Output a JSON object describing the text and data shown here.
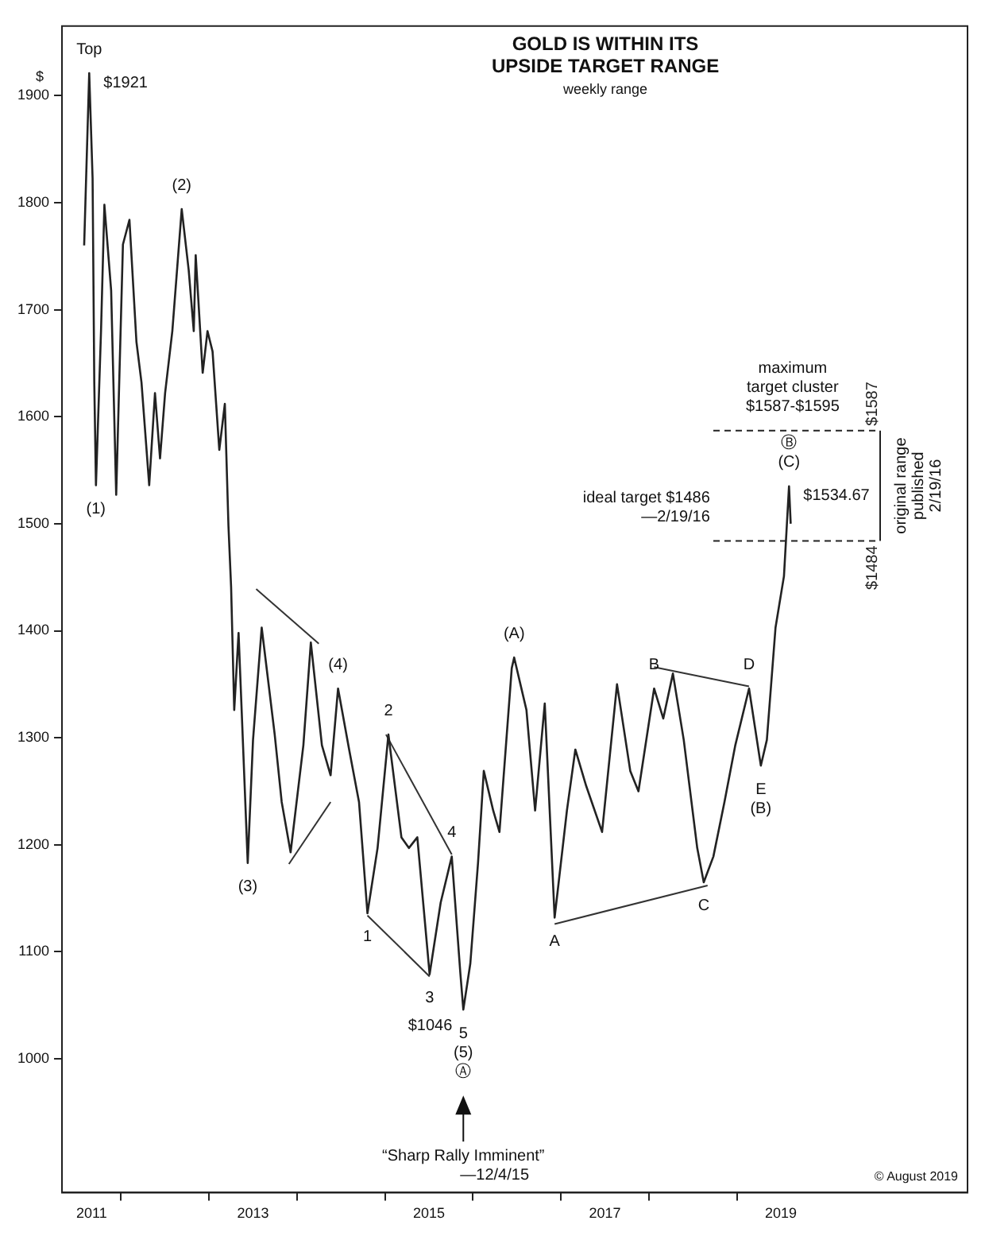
{
  "chart_data": {
    "type": "line",
    "title": "GOLD IS WITHIN ITS\nUPSIDE TARGET RANGE",
    "subtitle": "weekly range",
    "ylabel": "$",
    "x": [
      "2011-08-01",
      "2011-08-22",
      "2011-09-05",
      "2011-09-12",
      "2011-09-19",
      "2011-10-10",
      "2011-10-24",
      "2011-11-21",
      "2011-12-12",
      "2012-01-09",
      "2012-02-05",
      "2012-03-05",
      "2012-03-26",
      "2012-04-27",
      "2012-05-21",
      "2012-06-11",
      "2012-07-02",
      "2012-08-01",
      "2012-09-09",
      "2012-10-08",
      "2012-10-29",
      "2012-11-06",
      "2012-12-05",
      "2012-12-25",
      "2013-01-15",
      "2013-02-12",
      "2013-03-07",
      "2013-03-22",
      "2013-04-02",
      "2013-04-15",
      "2013-05-03",
      "2013-06-10",
      "2013-07-02",
      "2013-08-07",
      "2013-09-30",
      "2013-10-29",
      "2013-12-05",
      "2014-01-27",
      "2014-02-27",
      "2014-04-14",
      "2014-05-20",
      "2014-06-20",
      "2014-08-05",
      "2014-09-15",
      "2014-10-20",
      "2014-12-01",
      "2015-01-15",
      "2015-03-10",
      "2015-04-10",
      "2015-05-15",
      "2015-07-05",
      "2015-08-20",
      "2015-10-05",
      "2015-11-10",
      "2015-11-22",
      "2015-12-21",
      "2016-01-22",
      "2016-02-15",
      "2016-03-25",
      "2016-04-20",
      "2016-06-10",
      "2016-06-20",
      "2016-08-10",
      "2016-09-15",
      "2016-10-25",
      "2016-12-05",
      "2017-01-25",
      "2017-03-01",
      "2017-04-15",
      "2017-06-20",
      "2017-08-21",
      "2017-10-15",
      "2017-11-18",
      "2018-01-22",
      "2018-03-01",
      "2018-04-10",
      "2018-05-25",
      "2018-07-20",
      "2018-08-16",
      "2018-09-25",
      "2018-11-10",
      "2018-12-25",
      "2019-02-20",
      "2019-04-10",
      "2019-05-05",
      "2019-06-10",
      "2019-07-15",
      "2019-08-05",
      "2019-08-12"
    ],
    "series": [
      {
        "color": "#222222",
        "values": [
          1760,
          1921,
          1823,
          1632,
          1536,
          1680,
          1798,
          1718,
          1527,
          1761,
          1784,
          1670,
          1632,
          1536,
          1622,
          1561,
          1622,
          1680,
          1794,
          1737,
          1680,
          1751,
          1641,
          1680,
          1661,
          1569,
          1612,
          1498,
          1441,
          1326,
          1398,
          1183,
          1298,
          1403,
          1303,
          1240,
          1193,
          1293,
          1389,
          1293,
          1265,
          1346,
          1289,
          1240,
          1136,
          1197,
          1303,
          1207,
          1197,
          1207,
          1079,
          1146,
          1189,
          1079,
          1046,
          1089,
          1183,
          1269,
          1232,
          1212,
          1365,
          1375,
          1326,
          1232,
          1332,
          1132,
          1232,
          1289,
          1255,
          1212,
          1350,
          1269,
          1250,
          1346,
          1318,
          1360,
          1298,
          1197,
          1165,
          1189,
          1240,
          1293,
          1346,
          1274,
          1298,
          1403,
          1451,
          1535,
          1500
        ]
      },
      {
        "type": "line",
        "color": "#333333",
        "x": [
          "2013-07-15",
          "2014-04-01"
        ],
        "values": [
          1439,
          1388
        ]
      },
      {
        "type": "line",
        "color": "#333333",
        "x": [
          "2013-11-28",
          "2014-05-20"
        ],
        "values": [
          1182,
          1240
        ]
      },
      {
        "type": "line",
        "color": "#333333",
        "x": [
          "2014-10-20",
          "2015-07-05"
        ],
        "values": [
          1134,
          1077
        ]
      },
      {
        "type": "line",
        "color": "#333333",
        "x": [
          "2015-01-05",
          "2015-10-05"
        ],
        "values": [
          1303,
          1191
        ]
      },
      {
        "type": "line",
        "color": "#333333",
        "x": [
          "2016-12-05",
          "2018-09-01"
        ],
        "values": [
          1126,
          1162
        ]
      },
      {
        "type": "line",
        "color": "#333333",
        "x": [
          "2018-01-22",
          "2019-02-20"
        ],
        "values": [
          1366,
          1348
        ]
      }
    ],
    "xlim": [
      "2011-05-01",
      "2021-08-15"
    ],
    "ylim": [
      875,
      1965
    ],
    "xticks": [
      {
        "value": "2011-09-01",
        "label": "2011"
      },
      {
        "value": "2012-01-01",
        "label": null
      },
      {
        "value": "2013-01-01",
        "label": null
      },
      {
        "value": "2013-07-02",
        "label": "2013"
      },
      {
        "value": "2014-01-01",
        "label": null
      },
      {
        "value": "2015-01-01",
        "label": null
      },
      {
        "value": "2015-07-02",
        "label": "2015"
      },
      {
        "value": "2016-01-01",
        "label": null
      },
      {
        "value": "2017-01-01",
        "label": null
      },
      {
        "value": "2017-07-02",
        "label": "2017"
      },
      {
        "value": "2018-01-01",
        "label": null
      },
      {
        "value": "2019-01-01",
        "label": null
      },
      {
        "value": "2019-07-02",
        "label": "2019"
      }
    ],
    "yticks": [
      1000,
      1100,
      1200,
      1300,
      1400,
      1500,
      1600,
      1700,
      1800,
      1900
    ],
    "grid": false,
    "legend": false,
    "ref_lines": [
      {
        "axis": "y",
        "value": 1587,
        "label": "$1587",
        "line_style": "dashed",
        "color": "#222222"
      },
      {
        "axis": "y",
        "value": 1484,
        "label": "$1484",
        "line_style": "dashed",
        "color": "#222222"
      }
    ],
    "annotations": [
      {
        "text": "$1921",
        "x": "2011-08-22",
        "y": 1921
      },
      {
        "text": "Top",
        "x": "2011-08-22",
        "y": 1921
      },
      {
        "text": "(1)",
        "x": "2011-09-19",
        "y": 1536
      },
      {
        "text": "(2)",
        "x": "2012-09-09",
        "y": 1794
      },
      {
        "text": "(3)",
        "x": "2013-06-10",
        "y": 1183
      },
      {
        "text": "(4)",
        "x": "2014-06-20",
        "y": 1346
      },
      {
        "text": "1",
        "x": "2014-10-20",
        "y": 1136
      },
      {
        "text": "2",
        "x": "2015-01-15",
        "y": 1303
      },
      {
        "text": "3",
        "x": "2015-07-05",
        "y": 1079
      },
      {
        "text": "4",
        "x": "2015-10-05",
        "y": 1189
      },
      {
        "text": "$1046",
        "x": "2015-11-22",
        "y": 1046
      },
      {
        "text": "5\n(5)\nⒶ",
        "x": "2015-11-22",
        "y": 1046
      },
      {
        "text": "(A)",
        "x": "2016-06-20",
        "y": 1375
      },
      {
        "text": "A",
        "x": "2016-12-05",
        "y": 1132
      },
      {
        "text": "B",
        "x": "2018-01-22",
        "y": 1346
      },
      {
        "text": "C",
        "x": "2018-08-16",
        "y": 1165
      },
      {
        "text": "D",
        "x": "2019-02-20",
        "y": 1346
      },
      {
        "text": "E\n(B)",
        "x": "2019-04-10",
        "y": 1274
      },
      {
        "text": "$1534.67",
        "x": "2019-08-05",
        "y": 1535
      },
      {
        "text": "Ⓑ\n(C)",
        "x": "2019-08-05",
        "y": 1535
      },
      {
        "text": "maximum\ntarget cluster\n$1587-$1595",
        "x": "2019-08-20",
        "y": 1587
      },
      {
        "text": "ideal target $1486\n—2/19/16",
        "x": "2018-10-01",
        "y": 1484
      },
      "“Sharp Rally Imminent”\n—12/4/15",
      "original range\npublished\n2/19/16",
      "© August 2019"
    ]
  }
}
